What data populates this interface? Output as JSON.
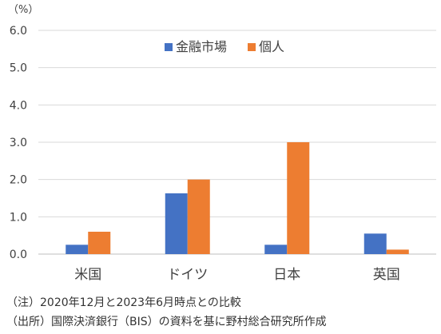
{
  "chart_data": {
    "type": "bar",
    "unit_label": "（%）",
    "categories": [
      "米国",
      "ドイツ",
      "日本",
      "英国"
    ],
    "series": [
      {
        "name": "金融市場",
        "values": [
          0.25,
          1.63,
          0.25,
          0.55
        ],
        "color": "#4472C4"
      },
      {
        "name": "個人",
        "values": [
          0.6,
          2.0,
          3.0,
          0.12
        ],
        "color": "#ED7D31"
      }
    ],
    "ylim": [
      0,
      6
    ],
    "yticks": [
      "0.0",
      "1.0",
      "2.0",
      "3.0",
      "4.0",
      "5.0",
      "6.0"
    ],
    "ytick_values": [
      0,
      1,
      2,
      3,
      4,
      5,
      6
    ],
    "grid": true,
    "legend_position": "top"
  },
  "notes": {
    "note": "（注）2020年12月と2023年6月時点との比較",
    "source": "（出所）国際決済銀行（BIS）の資料を基に野村総合研究所作成"
  }
}
